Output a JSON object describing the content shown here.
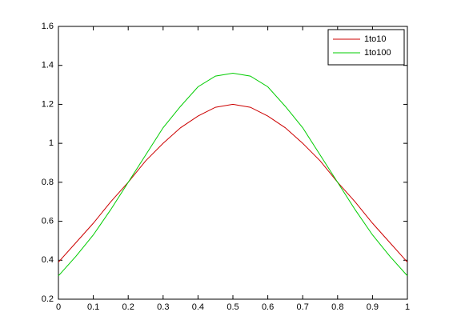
{
  "chart_data": {
    "type": "line",
    "x": [
      0,
      0.05,
      0.1,
      0.15,
      0.2,
      0.25,
      0.3,
      0.35,
      0.4,
      0.45,
      0.5,
      0.55,
      0.6,
      0.65,
      0.7,
      0.75,
      0.8,
      0.85,
      0.9,
      0.95,
      1
    ],
    "series": [
      {
        "name": "1to10",
        "color": "#cc0000",
        "values": [
          0.39,
          0.49,
          0.59,
          0.7,
          0.8,
          0.91,
          1.0,
          1.08,
          1.14,
          1.185,
          1.2,
          1.185,
          1.14,
          1.08,
          1.0,
          0.91,
          0.8,
          0.7,
          0.59,
          0.49,
          0.39
        ]
      },
      {
        "name": "1to100",
        "color": "#00cc00",
        "values": [
          0.32,
          0.42,
          0.53,
          0.66,
          0.8,
          0.94,
          1.08,
          1.19,
          1.29,
          1.345,
          1.36,
          1.345,
          1.29,
          1.19,
          1.08,
          0.94,
          0.8,
          0.66,
          0.53,
          0.42,
          0.32
        ]
      }
    ],
    "xlim": [
      0,
      1
    ],
    "xticks": [
      0,
      0.1,
      0.2,
      0.3,
      0.4,
      0.5,
      0.6,
      0.7,
      0.8,
      0.9,
      1
    ],
    "ylim": [
      0.2,
      1.6
    ],
    "yticks": [
      0.2,
      0.4,
      0.6,
      0.8,
      1,
      1.2,
      1.4,
      1.6
    ],
    "legend": "top-right"
  }
}
